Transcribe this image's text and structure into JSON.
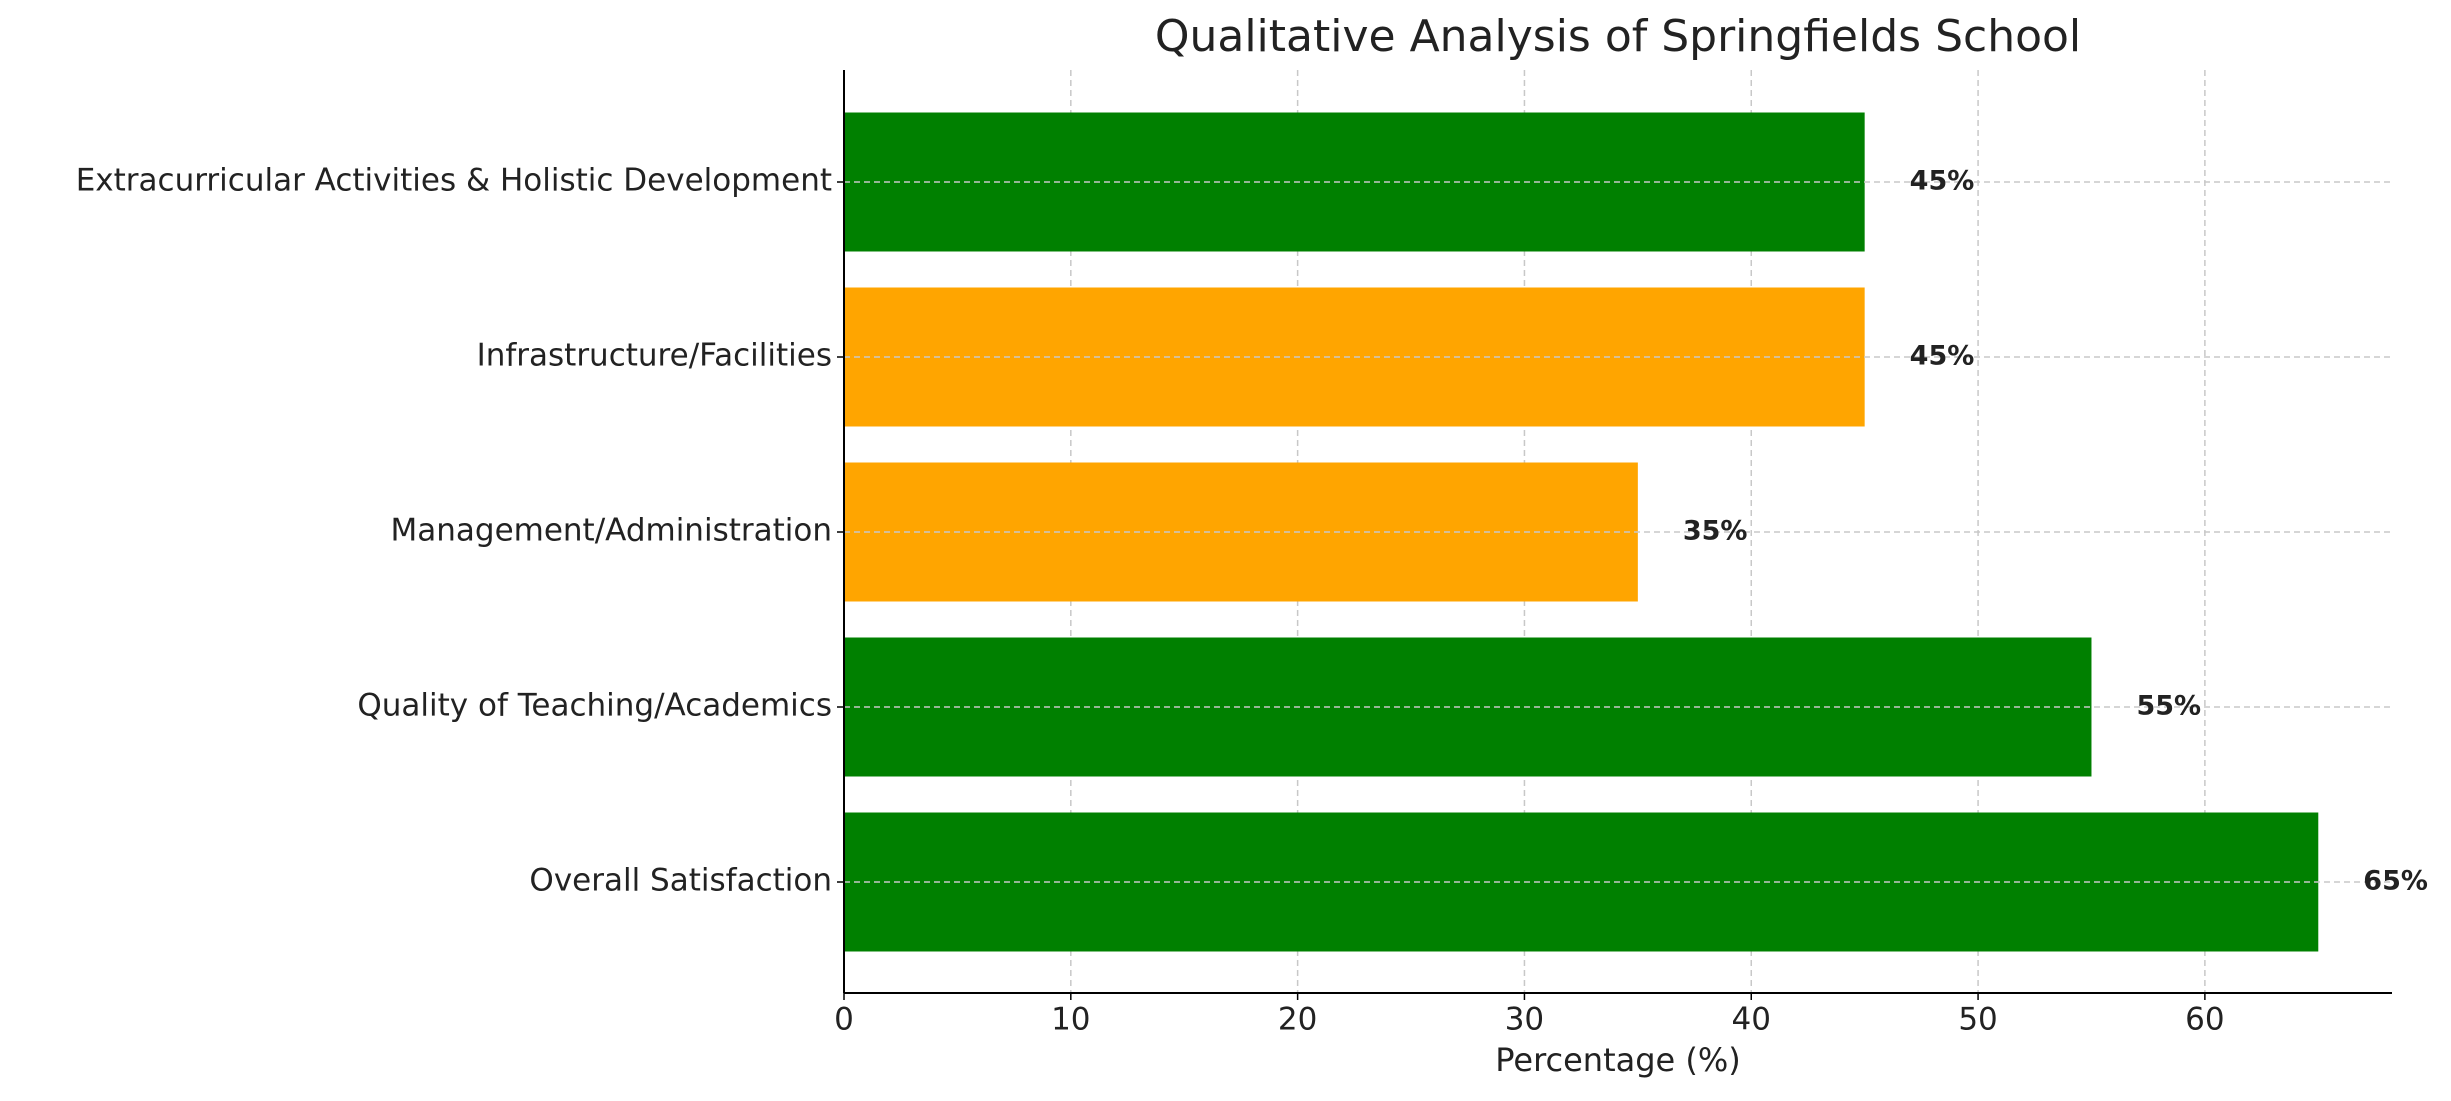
{
  "chart_data": {
    "type": "barh",
    "title": "Qualitative Analysis of Springfields School",
    "x_label": "Percentage (%)",
    "categories": [
      "Overall Satisfaction",
      "Quality of Teaching/Academics",
      "Management/Administration",
      "Infrastructure/Facilities",
      "Extracurricular Activities & Holistic Development"
    ],
    "values": [
      65,
      55,
      35,
      45,
      45
    ],
    "value_labels": [
      "65%",
      "55%",
      "35%",
      "45%",
      "45%"
    ],
    "colors": [
      "#008000",
      "#008000",
      "#ffa500",
      "#ffa500",
      "#008000"
    ],
    "xlim": [
      0,
      68.25
    ],
    "xticks": [
      0,
      10,
      20,
      30,
      40,
      50,
      60
    ],
    "grid": true
  }
}
